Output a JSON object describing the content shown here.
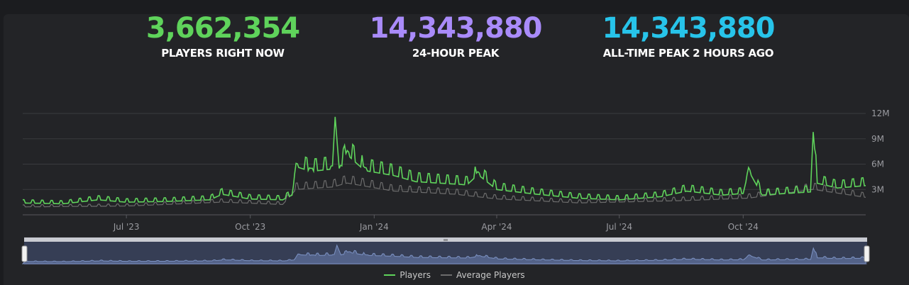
{
  "stats": [
    {
      "value": "3,662,354",
      "label": "PLAYERS RIGHT NOW",
      "color": "#5fd35b"
    },
    {
      "value": "14,343,880",
      "label": "24-HOUR PEAK",
      "color": "#a98bfa"
    },
    {
      "value": "14,343,880",
      "label": "ALL-TIME PEAK 2 HOURS AGO",
      "color": "#27c4ea"
    }
  ],
  "colors": {
    "players": "#5fd35b",
    "average": "#6c6c6c",
    "grid": "#3a3b3f",
    "navigator_fill": "#3f4f74",
    "navigator_line": "#6f86bb"
  },
  "chart_data": {
    "type": "line",
    "x_range": [
      "2023-04-15",
      "2024-12-31"
    ],
    "x_ticks": [
      "Jul '23",
      "Oct '23",
      "Jan '24",
      "Apr '24",
      "Jul '24",
      "Oct '24"
    ],
    "y_ticks": [
      "3M",
      "6M",
      "9M",
      "12M"
    ],
    "ylim": [
      0,
      12000000
    ],
    "grid": true,
    "legend": "bottom-center",
    "series": [
      {
        "name": "Players",
        "points": [
          [
            "2023-04-15",
            1.5
          ],
          [
            "2023-05-15",
            1.4
          ],
          [
            "2023-06-10",
            1.9
          ],
          [
            "2023-07-01",
            1.6
          ],
          [
            "2023-08-01",
            1.7
          ],
          [
            "2023-09-01",
            1.9
          ],
          [
            "2023-09-10",
            2.6
          ],
          [
            "2023-10-01",
            2.0
          ],
          [
            "2023-10-25",
            1.9
          ],
          [
            "2023-11-01",
            2.5
          ],
          [
            "2023-11-04",
            6.1
          ],
          [
            "2023-11-15",
            5.5
          ],
          [
            "2023-12-01",
            5.8
          ],
          [
            "2023-12-03",
            11.6
          ],
          [
            "2023-12-06",
            5.5
          ],
          [
            "2023-12-12",
            7.6
          ],
          [
            "2023-12-25",
            5.6
          ],
          [
            "2024-01-15",
            5.0
          ],
          [
            "2024-02-01",
            4.2
          ],
          [
            "2024-02-20",
            4.0
          ],
          [
            "2024-03-10",
            3.8
          ],
          [
            "2024-03-18",
            5.1
          ],
          [
            "2024-04-01",
            3.2
          ],
          [
            "2024-05-01",
            2.6
          ],
          [
            "2024-06-01",
            2.1
          ],
          [
            "2024-07-01",
            1.9
          ],
          [
            "2024-08-01",
            2.3
          ],
          [
            "2024-08-20",
            3.0
          ],
          [
            "2024-09-15",
            2.5
          ],
          [
            "2024-10-01",
            2.7
          ],
          [
            "2024-10-05",
            5.6
          ],
          [
            "2024-10-15",
            2.5
          ],
          [
            "2024-11-01",
            2.7
          ],
          [
            "2024-11-20",
            2.9
          ],
          [
            "2024-11-22",
            9.8
          ],
          [
            "2024-11-25",
            4.0
          ],
          [
            "2024-12-10",
            3.4
          ],
          [
            "2024-12-31",
            3.7
          ]
        ]
      },
      {
        "name": "Average Players",
        "points": [
          [
            "2023-04-15",
            1.0
          ],
          [
            "2023-07-01",
            1.1
          ],
          [
            "2023-09-10",
            1.6
          ],
          [
            "2023-10-25",
            1.3
          ],
          [
            "2023-11-04",
            3.2
          ],
          [
            "2023-12-01",
            3.5
          ],
          [
            "2023-12-12",
            4.0
          ],
          [
            "2024-01-15",
            3.0
          ],
          [
            "2024-03-01",
            2.6
          ],
          [
            "2024-04-01",
            2.0
          ],
          [
            "2024-06-01",
            1.5
          ],
          [
            "2024-08-20",
            1.8
          ],
          [
            "2024-10-05",
            2.1
          ],
          [
            "2024-11-22",
            3.2
          ],
          [
            "2024-12-31",
            2.2
          ]
        ]
      }
    ]
  }
}
